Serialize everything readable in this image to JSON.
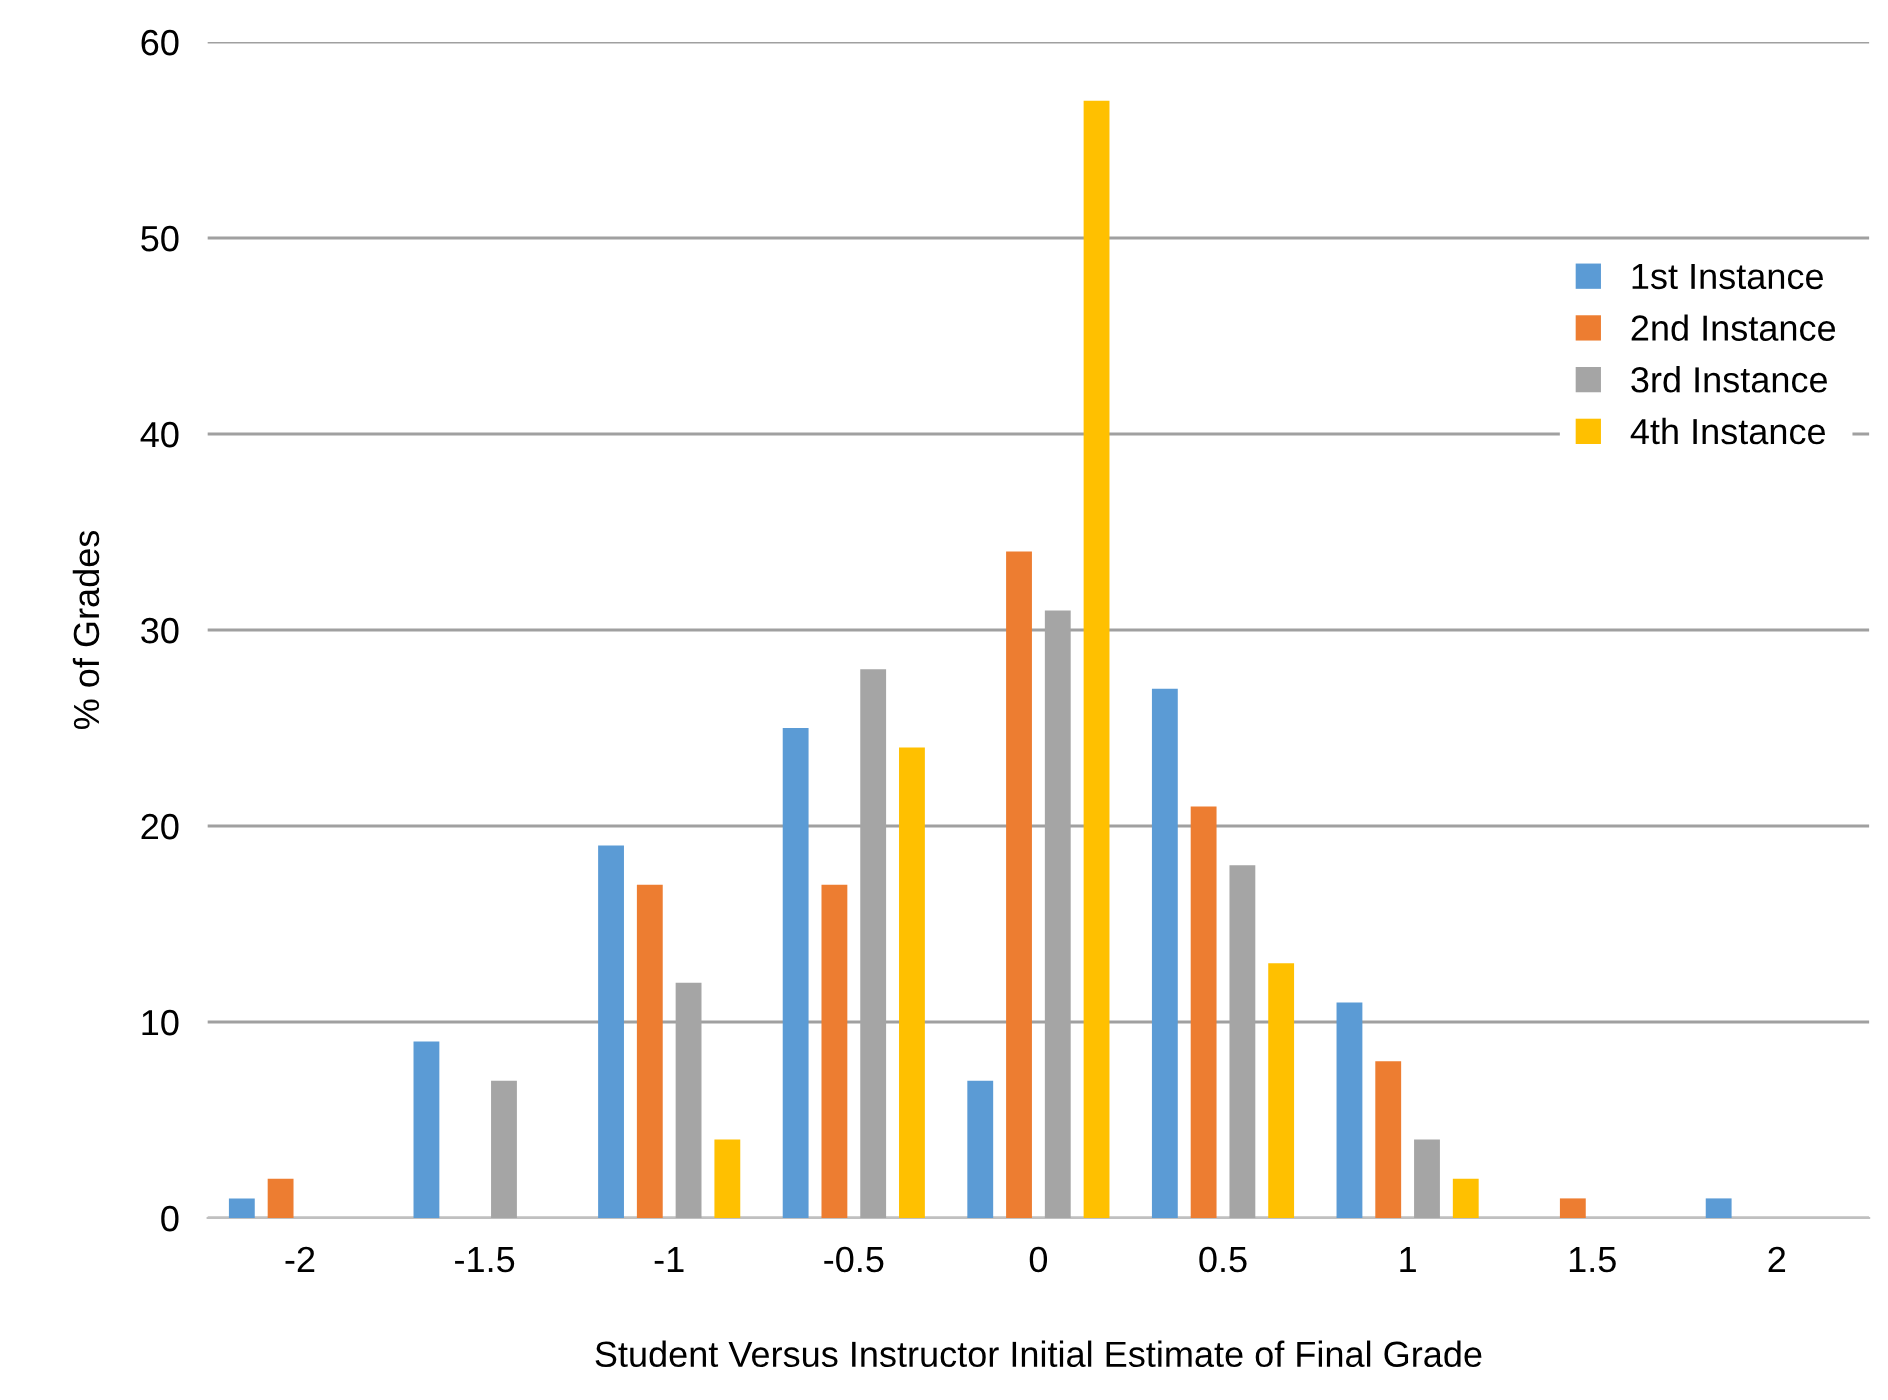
{
  "chart_data": {
    "type": "bar",
    "xlabel": "Student Versus Instructor Initial Estimate of Final Grade",
    "ylabel": "% of Grades",
    "categories": [
      "-2",
      "-1.5",
      "-1",
      "-0.5",
      "0",
      "0.5",
      "1",
      "1.5",
      "2"
    ],
    "series": [
      {
        "name": "1st Instance",
        "color": "#5b9bd5",
        "values": [
          1,
          9,
          19,
          25,
          7,
          27,
          11,
          0,
          1
        ]
      },
      {
        "name": "2nd Instance",
        "color": "#ed7d31",
        "values": [
          2,
          0,
          17,
          17,
          34,
          21,
          8,
          1,
          0
        ]
      },
      {
        "name": "3rd Instance",
        "color": "#a5a5a5",
        "values": [
          0,
          7,
          12,
          28,
          31,
          18,
          4,
          0,
          0
        ]
      },
      {
        "name": "4th Instance",
        "color": "#ffc000",
        "values": [
          0,
          0,
          4,
          24,
          57,
          13,
          2,
          0,
          0
        ]
      }
    ],
    "ylim": [
      0,
      60
    ],
    "yticks": [
      0,
      10,
      20,
      30,
      40,
      50,
      60
    ],
    "grid": "y",
    "legend": "top right"
  }
}
